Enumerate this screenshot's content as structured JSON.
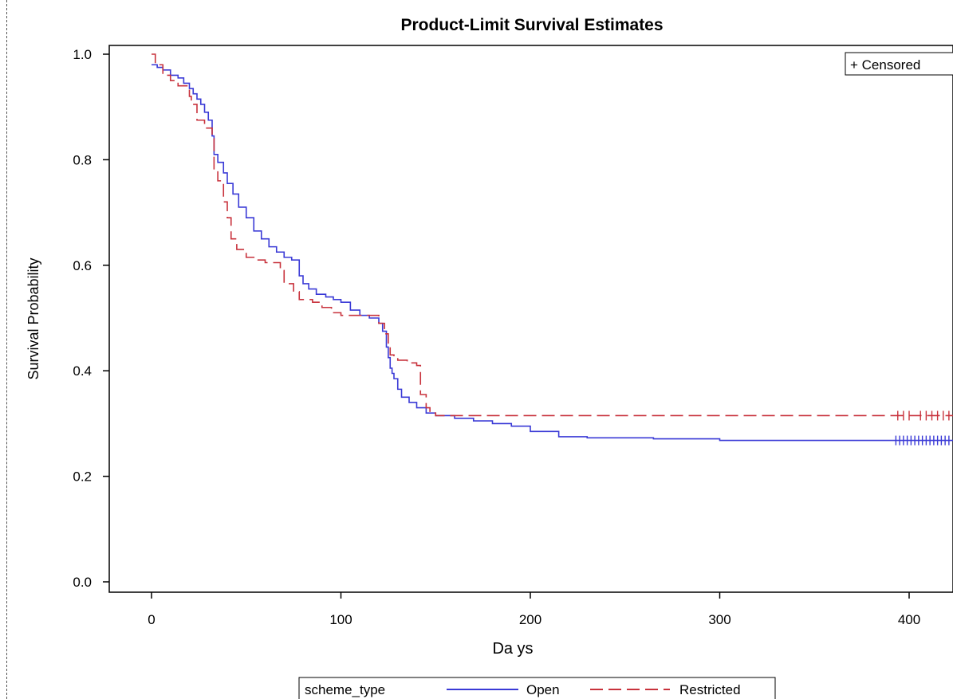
{
  "chart_data": {
    "type": "line",
    "title": "Product-Limit Survival Estimates",
    "xlabel": "Da ys",
    "ylabel": "Survival Probability",
    "xlim": [
      -22,
      425
    ],
    "ylim": [
      -0.02,
      1.0
    ],
    "x_ticks": [
      0,
      100,
      200,
      300,
      400
    ],
    "x_tick_labels": [
      "0",
      "100",
      "200",
      "300",
      "400"
    ],
    "y_ticks": [
      0.0,
      0.2,
      0.4,
      0.6,
      0.8,
      1.0
    ],
    "y_tick_labels": [
      "0.0",
      "0.2",
      "0.4",
      "0.6",
      "0.8",
      "1.0"
    ],
    "grid": false,
    "censored_legend": "+ Censored",
    "legend": {
      "title": "scheme_type",
      "placement": "bottom"
    },
    "series": [
      {
        "name": "Open",
        "color": "#3a3ad6",
        "style": "solid",
        "x": [
          0,
          3,
          6,
          10,
          14,
          17,
          20,
          22,
          24,
          26,
          28,
          30,
          32,
          33,
          35,
          38,
          40,
          43,
          46,
          50,
          54,
          58,
          62,
          66,
          70,
          74,
          78,
          80,
          83,
          87,
          92,
          96,
          100,
          105,
          110,
          115,
          120,
          122,
          124,
          125,
          126,
          127,
          128,
          130,
          132,
          136,
          140,
          145,
          150,
          160,
          170,
          180,
          190,
          200,
          215,
          230,
          265,
          300,
          350,
          430
        ],
        "y": [
          0.98,
          0.975,
          0.97,
          0.96,
          0.955,
          0.945,
          0.935,
          0.925,
          0.915,
          0.905,
          0.89,
          0.875,
          0.845,
          0.81,
          0.795,
          0.775,
          0.755,
          0.735,
          0.71,
          0.69,
          0.665,
          0.65,
          0.635,
          0.625,
          0.615,
          0.61,
          0.58,
          0.565,
          0.555,
          0.545,
          0.54,
          0.535,
          0.53,
          0.515,
          0.505,
          0.5,
          0.49,
          0.475,
          0.445,
          0.425,
          0.405,
          0.395,
          0.385,
          0.365,
          0.35,
          0.34,
          0.33,
          0.32,
          0.315,
          0.31,
          0.305,
          0.3,
          0.295,
          0.285,
          0.275,
          0.273,
          0.271,
          0.268,
          0.268,
          0.268
        ],
        "censored_x": [
          393,
          395,
          397,
          399,
          401,
          403,
          405,
          407,
          409,
          411,
          413,
          415,
          417,
          419,
          421,
          423
        ],
        "censored_y": 0.268
      },
      {
        "name": "Restricted",
        "color": "#c8323c",
        "style": "dashed",
        "x": [
          0,
          2,
          6,
          10,
          14,
          20,
          21,
          24,
          28,
          32,
          33,
          35,
          38,
          40,
          42,
          45,
          50,
          55,
          60,
          68,
          70,
          75,
          78,
          85,
          90,
          95,
          100,
          105,
          110,
          115,
          120,
          123,
          125,
          126,
          128,
          130,
          135,
          140,
          142,
          145,
          147,
          150,
          200,
          300,
          430
        ],
        "y": [
          1.0,
          0.98,
          0.96,
          0.95,
          0.94,
          0.92,
          0.905,
          0.875,
          0.86,
          0.84,
          0.78,
          0.76,
          0.72,
          0.69,
          0.65,
          0.63,
          0.615,
          0.61,
          0.605,
          0.59,
          0.565,
          0.55,
          0.535,
          0.53,
          0.52,
          0.51,
          0.505,
          0.505,
          0.505,
          0.505,
          0.49,
          0.47,
          0.45,
          0.43,
          0.425,
          0.42,
          0.415,
          0.41,
          0.355,
          0.33,
          0.32,
          0.315,
          0.315,
          0.315,
          0.315
        ],
        "censored_x": [
          394,
          397,
          400,
          406,
          409,
          412,
          415,
          418,
          421,
          424
        ],
        "censored_y": 0.315
      }
    ]
  }
}
